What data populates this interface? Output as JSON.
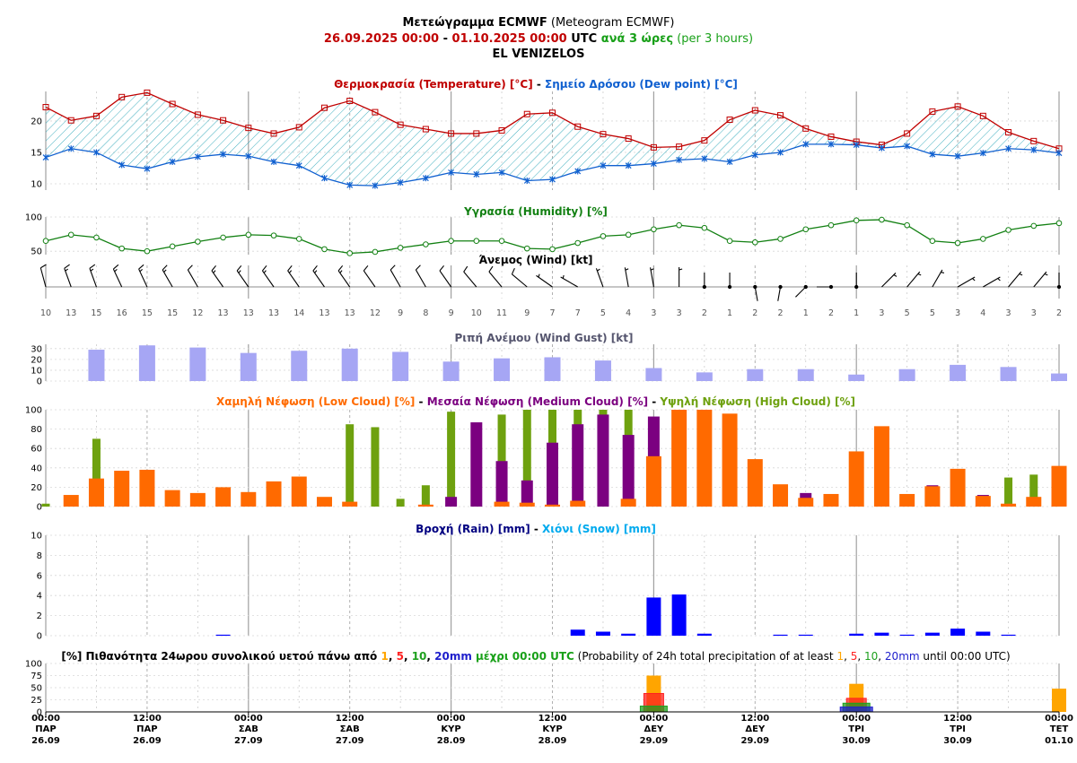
{
  "header": {
    "title_bold": "Μετεώγραμμα ECMWF",
    "title_normal": " (Meteogram ECMWF)",
    "date_from": "26.09.2025 00:00",
    "dash": " - ",
    "date_to": "01.10.2025 00:00",
    "utc": " UTC ",
    "step_gr": "ανά 3 ώρες",
    "step_en": " (per 3 hours)",
    "station": "EL VENIZELOS"
  },
  "colors": {
    "temp": "#c00000",
    "dew": "#1060d0",
    "humidity": "#128012",
    "gust": "#a6a6f4",
    "low_cloud": "#ff6a00",
    "medium_cloud": "#7b0080",
    "high_cloud": "#6ea10f",
    "rain": "#0000ff",
    "snow": "#00aaee",
    "p1": "#ffa500",
    "p5": "#ff2020",
    "p10": "#1ea01e",
    "p20": "#2020cc"
  },
  "titles": {
    "temp_gr": "Θερμοκρασία (Temperature) [°C]",
    "sep": " - ",
    "dew_gr": "Σημείο Δρόσου (Dew point) [°C]",
    "humidity": "Υγρασία (Humidity) [%]",
    "wind": "Άνεμος (Wind) [kt]",
    "gust": "Ριπή Ανέμου (Wind Gust) [kt]",
    "low_cloud": "Χαμηλή Νέφωση (Low Cloud) [%]",
    "medium_cloud": "Μεσαία Νέφωση (Medium Cloud) [%]",
    "high_cloud": "Υψηλή Νέφωση (High Cloud) [%]",
    "rain": "Βροχή (Rain) [mm]",
    "snow": "Χιόνι (Snow) [mm]",
    "prob_a": "[%] Πιθανότητα 24ωρου συνολικού υετού πάνω από ",
    "t1": "1",
    "c": ", ",
    "t5": "5",
    "t10": "10",
    "t20": "20mm",
    "prob_b": " μέχρι 00:00 UTC",
    "prob_c": " (Probability of 24h total precipitation of at least ",
    "prob_d": " until 00:00 UTC)"
  },
  "x_axis": {
    "ticks": [
      {
        "time": "00:00",
        "day": "ΠΑΡ",
        "date": "26.09"
      },
      {
        "time": "12:00",
        "day": "ΠΑΡ",
        "date": "26.09"
      },
      {
        "time": "00:00",
        "day": "ΣΑΒ",
        "date": "27.09"
      },
      {
        "time": "12:00",
        "day": "ΣΑΒ",
        "date": "27.09"
      },
      {
        "time": "00:00",
        "day": "ΚΥΡ",
        "date": "28.09"
      },
      {
        "time": "12:00",
        "day": "ΚΥΡ",
        "date": "28.09"
      },
      {
        "time": "00:00",
        "day": "ΔΕΥ",
        "date": "29.09"
      },
      {
        "time": "12:00",
        "day": "ΔΕΥ",
        "date": "29.09"
      },
      {
        "time": "00:00",
        "day": "ΤΡΙ",
        "date": "30.09"
      },
      {
        "time": "12:00",
        "day": "ΤΡΙ",
        "date": "30.09"
      },
      {
        "time": "00:00",
        "day": "ΤΕΤ",
        "date": "01.10"
      }
    ]
  },
  "chart_data": [
    {
      "type": "line",
      "title": "Θερμοκρασία (Temperature) [°C] - Σημείο Δρόσου (Dew point) [°C]",
      "step_hours": 3,
      "y_ticks": [
        10,
        15,
        20
      ],
      "series": [
        {
          "name": "Θερμοκρασία (Temperature) [°C]",
          "values": [
            22.2,
            20.1,
            20.8,
            23.8,
            24.5,
            22.7,
            21.0,
            20.1,
            18.9,
            18.0,
            19.0,
            22.1,
            23.2,
            21.4,
            19.4,
            18.7,
            18.0,
            18.0,
            18.5,
            21.1,
            21.3,
            19.1,
            17.9,
            17.2,
            15.8,
            15.9,
            16.9,
            20.2,
            21.7,
            20.9,
            18.8,
            17.5,
            16.7,
            16.2,
            18.0,
            21.5,
            22.3,
            20.8,
            18.2,
            16.8,
            15.6
          ]
        },
        {
          "name": "Σημείο Δρόσου (Dew point) [°C]",
          "values": [
            14.2,
            15.6,
            15.0,
            13.0,
            12.4,
            13.5,
            14.3,
            14.7,
            14.4,
            13.5,
            12.9,
            10.9,
            9.8,
            9.7,
            10.2,
            10.9,
            11.8,
            11.5,
            11.8,
            10.5,
            10.7,
            12.0,
            12.9,
            12.9,
            13.2,
            13.8,
            14.0,
            13.5,
            14.6,
            15.0,
            16.3,
            16.3,
            16.2,
            15.7,
            16.0,
            14.7,
            14.4,
            14.9,
            15.6,
            15.4,
            14.9
          ]
        }
      ]
    },
    {
      "type": "line",
      "title": "Υγρασία (Humidity) [%]",
      "step_hours": 3,
      "y_ticks": [
        50,
        100
      ],
      "series": [
        {
          "name": "Υγρασία (Humidity) [%]",
          "values": [
            65,
            74,
            70,
            54,
            50,
            57,
            64,
            70,
            74,
            73,
            68,
            53,
            47,
            49,
            55,
            60,
            65,
            65,
            65,
            54,
            53,
            62,
            72,
            74,
            82,
            88,
            84,
            65,
            63,
            68,
            82,
            88,
            95,
            96,
            88,
            65,
            62,
            68,
            81,
            87,
            91
          ]
        }
      ]
    },
    {
      "type": "wind",
      "title": "Άνεμος (Wind) [kt]",
      "step_hours": 3,
      "speed_kt": [
        10,
        13,
        15,
        16,
        15,
        15,
        12,
        13,
        13,
        13,
        14,
        13,
        13,
        12,
        9,
        8,
        9,
        10,
        11,
        9,
        7,
        7,
        5,
        4,
        3,
        3,
        2,
        1,
        2,
        2,
        1,
        2,
        1,
        3,
        5,
        5,
        3,
        4,
        3,
        3,
        2
      ],
      "direction_deg": [
        345,
        340,
        340,
        335,
        335,
        330,
        330,
        325,
        325,
        325,
        325,
        325,
        325,
        325,
        330,
        330,
        325,
        320,
        320,
        310,
        305,
        300,
        340,
        350,
        350,
        0,
        0,
        0,
        170,
        190,
        225,
        270,
        0,
        45,
        40,
        30,
        60,
        60,
        40,
        40,
        0
      ]
    },
    {
      "type": "bar",
      "title": "Ριπή Ανέμου (Wind Gust) [kt]",
      "step_hours": 6,
      "start_offset_hours": 6,
      "y_ticks": [
        0,
        10,
        20,
        30
      ],
      "values": [
        29,
        33,
        31,
        26,
        28,
        30,
        27,
        18,
        21,
        22,
        19,
        12,
        8,
        11,
        11,
        6,
        11,
        15,
        13,
        7
      ]
    },
    {
      "type": "bar",
      "title": "Χαμηλή Νέφωση (Low Cloud) [%] - Μεσαία Νέφωση (Medium Cloud) [%] - Υψηλή Νέφωση (High Cloud) [%]",
      "step_hours": 3,
      "y_ticks": [
        0,
        20,
        40,
        60,
        80,
        100
      ],
      "series": [
        {
          "name": "Χαμηλή Νέφωση (Low Cloud) [%]",
          "values": [
            0,
            12,
            29,
            37,
            38,
            17,
            14,
            20,
            15,
            26,
            31,
            10,
            5,
            0,
            0,
            2,
            0,
            0,
            5,
            4,
            2,
            6,
            0,
            8,
            52,
            100,
            100,
            96,
            49,
            23,
            9,
            13,
            57,
            83,
            13,
            21,
            39,
            11,
            3,
            10,
            42
          ]
        },
        {
          "name": "Μεσαία Νέφωση (Medium Cloud) [%]",
          "values": [
            0,
            0,
            0,
            0,
            0,
            0,
            0,
            0,
            0,
            0,
            0,
            0,
            0,
            0,
            0,
            0,
            10,
            87,
            47,
            27,
            66,
            85,
            95,
            74,
            93,
            0,
            0,
            0,
            0,
            0,
            14,
            0,
            0,
            0,
            0,
            22,
            0,
            12,
            0,
            0,
            0
          ]
        },
        {
          "name": "Υψηλή Νέφωση (High Cloud) [%]",
          "values": [
            3,
            0,
            70,
            0,
            0,
            0,
            0,
            0,
            0,
            0,
            0,
            0,
            85,
            82,
            8,
            22,
            98,
            0,
            95,
            100,
            100,
            100,
            100,
            100,
            0,
            0,
            0,
            0,
            0,
            0,
            0,
            0,
            0,
            0,
            0,
            0,
            0,
            0,
            30,
            33,
            0
          ]
        }
      ]
    },
    {
      "type": "bar",
      "title": "Βροχή (Rain) [mm] - Χιόνι (Snow) [mm]",
      "step_hours": 3,
      "y_ticks": [
        0,
        2,
        4,
        6,
        8,
        10
      ],
      "series": [
        {
          "name": "Βροχή (Rain) [mm]",
          "values": [
            0,
            0,
            0,
            0,
            0,
            0,
            0,
            0.1,
            0,
            0,
            0,
            0,
            0,
            0,
            0,
            0,
            0,
            0,
            0,
            0,
            0,
            0.6,
            0.4,
            0.2,
            3.8,
            4.1,
            0.2,
            0,
            0,
            0.1,
            0.1,
            0,
            0.2,
            0.3,
            0.1,
            0.3,
            0.7,
            0.4,
            0.1,
            0,
            0
          ]
        },
        {
          "name": "Χιόνι (Snow) [mm]",
          "values": [
            0,
            0,
            0,
            0,
            0,
            0,
            0,
            0,
            0,
            0,
            0,
            0,
            0,
            0,
            0,
            0,
            0,
            0,
            0,
            0,
            0,
            0,
            0,
            0,
            0,
            0,
            0,
            0,
            0,
            0,
            0,
            0,
            0,
            0,
            0,
            0,
            0,
            0,
            0,
            0,
            0
          ]
        }
      ]
    },
    {
      "type": "bar",
      "title": "[%] Probability of 24h total precipitation of at least 1, 5, 10, 20mm until 00:00 UTC",
      "step_hours": 24,
      "y_ticks": [
        0,
        25,
        50,
        75,
        100
      ],
      "categories": [
        "26.09",
        "27.09",
        "28.09",
        "29.09",
        "30.09",
        "01.10"
      ],
      "series": [
        {
          "name": "1",
          "values": [
            0,
            0,
            0,
            75,
            58,
            48
          ]
        },
        {
          "name": "5",
          "values": [
            0,
            0,
            0,
            38,
            28,
            0
          ]
        },
        {
          "name": "10",
          "values": [
            0,
            0,
            0,
            12,
            18,
            0
          ]
        },
        {
          "name": "20",
          "values": [
            0,
            0,
            0,
            0,
            10,
            0
          ]
        }
      ]
    }
  ]
}
